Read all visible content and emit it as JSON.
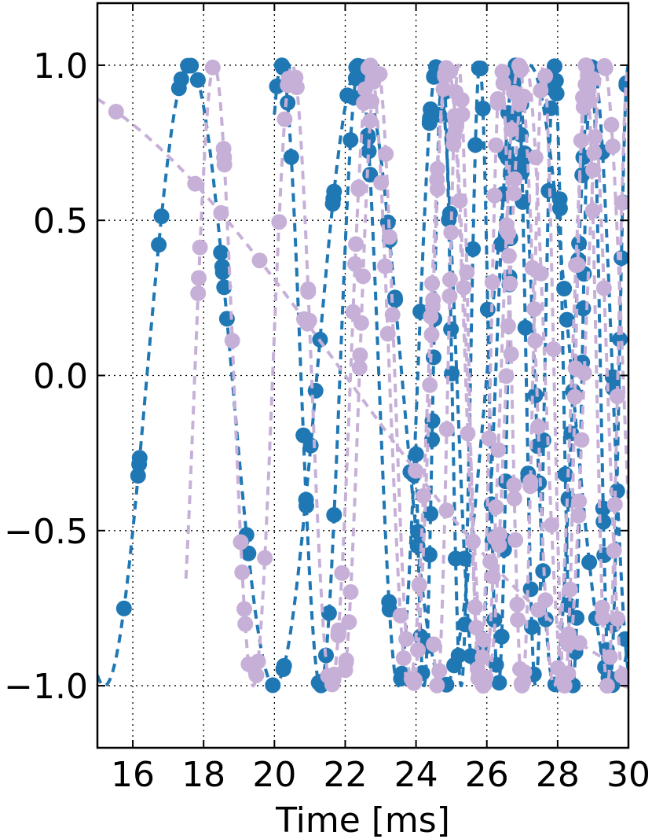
{
  "chart_data": {
    "type": "line",
    "title": "",
    "xlabel": "Time [ms]",
    "ylabel": "",
    "xlim": [
      15,
      30
    ],
    "ylim": [
      -1.2,
      1.2
    ],
    "xticks": [
      16,
      18,
      20,
      22,
      24,
      26,
      28,
      30
    ],
    "xtick_labels": [
      "16",
      "18",
      "20",
      "22",
      "24",
      "26",
      "28",
      "30"
    ],
    "yticks": [
      -1.0,
      -0.5,
      0.0,
      0.5,
      1.0
    ],
    "ytick_labels": [
      "−1.0",
      "−0.5",
      "0.0",
      "0.5",
      "1.0"
    ],
    "grid": true,
    "grid_style": "dotted",
    "series": [
      {
        "color": "#1f77b4",
        "style": "dashed line with round markers",
        "waves": [
          {
            "period": 4.8,
            "phase_ms": 17.6,
            "t_start": 15.0,
            "t_end": 30.0
          },
          {
            "period": 2.2,
            "phase_ms": 22.4,
            "t_start": 20.0,
            "t_end": 30.0
          },
          {
            "period": 1.05,
            "phase_ms": 27.9,
            "t_start": 24.0,
            "t_end": 30.0
          }
        ]
      },
      {
        "color": "#c7b0d8",
        "style": "dashed line with round markers",
        "waves": [
          {
            "period": 40.0,
            "phase_ms": 12.0,
            "t_start": 15.0,
            "t_end": 30.0
          },
          {
            "period": 2.2,
            "phase_ms": 20.5,
            "t_start": 17.5,
            "t_end": 30.0
          },
          {
            "period": 2.0,
            "phase_ms": 24.9,
            "t_start": 22.0,
            "t_end": 30.0
          },
          {
            "period": 1.2,
            "phase_ms": 27.6,
            "t_start": 24.5,
            "t_end": 30.0
          }
        ]
      }
    ]
  }
}
